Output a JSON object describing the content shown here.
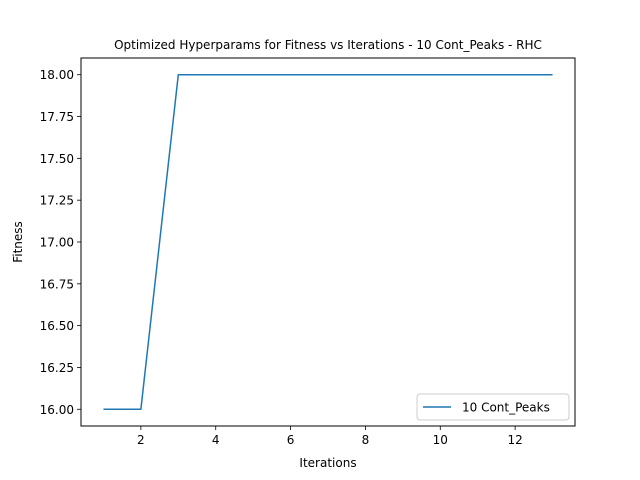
{
  "chart_data": {
    "type": "line",
    "title": "Optimized Hyperparams for Fitness vs Iterations - 10 Cont_Peaks - RHC",
    "xlabel": "Iterations",
    "ylabel": "Fitness",
    "xlim": [
      0.4,
      13.6
    ],
    "ylim": [
      15.9,
      18.1
    ],
    "xticks": [
      2,
      4,
      6,
      8,
      10,
      12
    ],
    "yticks": [
      16.0,
      16.25,
      16.5,
      16.75,
      17.0,
      17.25,
      17.5,
      17.75,
      18.0
    ],
    "ytick_labels": [
      "16.00",
      "16.25",
      "16.50",
      "16.75",
      "17.00",
      "17.25",
      "17.50",
      "17.75",
      "18.00"
    ],
    "grid": false,
    "legend_position": "lower right",
    "series": [
      {
        "name": "10 Cont_Peaks",
        "color": "#1f77b4",
        "x": [
          1,
          2,
          3,
          4,
          5,
          6,
          7,
          8,
          9,
          10,
          11,
          12,
          13
        ],
        "y": [
          16,
          16,
          18,
          18,
          18,
          18,
          18,
          18,
          18,
          18,
          18,
          18,
          18
        ]
      }
    ]
  }
}
